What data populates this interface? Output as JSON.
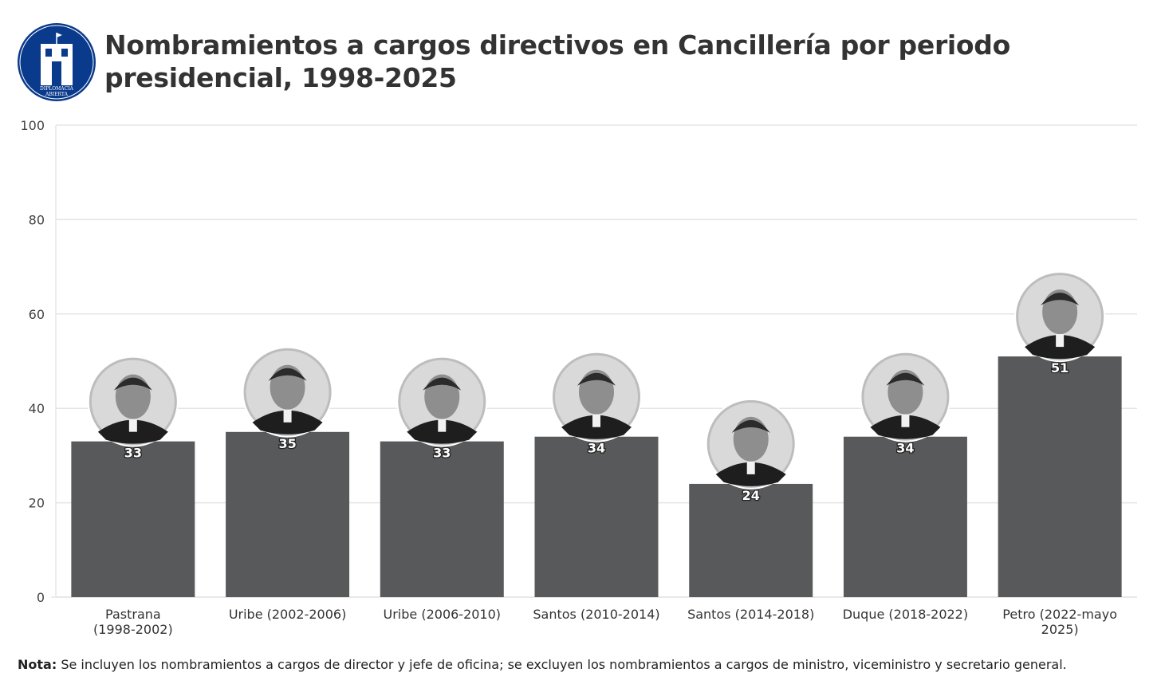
{
  "header": {
    "title": "Nombramientos a cargos directivos en Cancillería por periodo presidencial, 1998-2025",
    "logo_text_line1": "DIPLOMACIA",
    "logo_text_line2": "ABIERTA"
  },
  "colors": {
    "bar": "#58595b",
    "logo_blue": "#0a3a8c",
    "grid": "#e5e5e5",
    "portrait_bg": "#bdbdbd"
  },
  "chart_data": {
    "type": "bar",
    "title": "Nombramientos a cargos directivos en Cancillería por periodo presidencial, 1998-2025",
    "xlabel": "",
    "ylabel": "",
    "ylim": [
      0,
      100
    ],
    "yticks": [
      0,
      20,
      40,
      60,
      80,
      100
    ],
    "grid": true,
    "categories": [
      [
        "Pastrana",
        "(1998-2002)"
      ],
      [
        "Uribe (2002-2006)"
      ],
      [
        "Uribe (2006-2010)"
      ],
      [
        "Santos (2010-2014)"
      ],
      [
        "Santos (2014-2018)"
      ],
      [
        "Duque (2018-2022)"
      ],
      [
        "Petro (2022-mayo",
        "2025)"
      ]
    ],
    "values": [
      33,
      35,
      33,
      34,
      24,
      34,
      51
    ],
    "data_labels": [
      "33",
      "35",
      "33",
      "34",
      "24",
      "34",
      "51"
    ],
    "annotations": "portrait photo of each president above each bar"
  },
  "footer": {
    "note_label": "Nota:",
    "note_text": " Se incluyen los nombramientos a cargos de director y jefe de oficina; se excluyen los nombramientos a cargos de ministro, viceministro y secretario general."
  }
}
